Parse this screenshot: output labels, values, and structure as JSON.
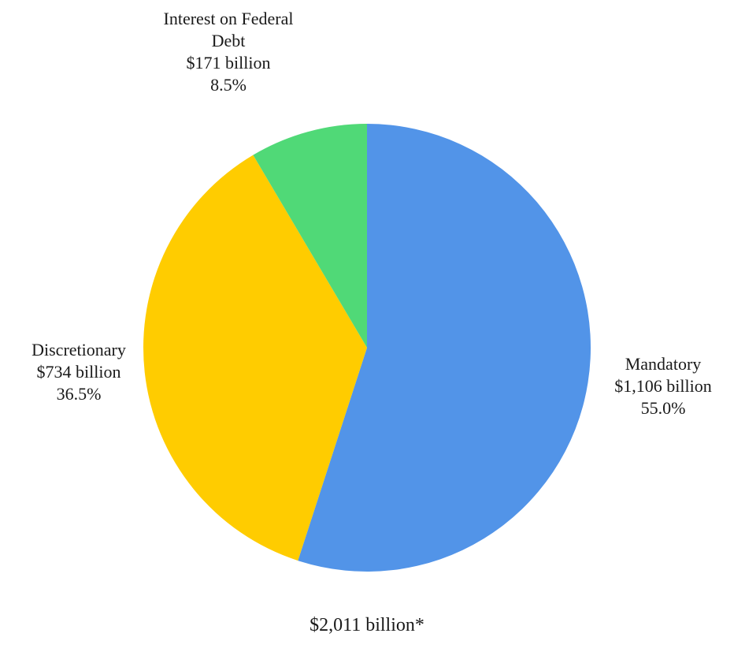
{
  "chart_data": {
    "type": "pie",
    "slices": [
      {
        "name": "Mandatory",
        "label_lines": [
          "Mandatory"
        ],
        "amount": "$1,106 billion",
        "percent_text": "55.0%",
        "value": 1106,
        "percent": 55.0,
        "color": "#5294e8"
      },
      {
        "name": "Discretionary",
        "label_lines": [
          "Discretionary"
        ],
        "amount": "$734 billion",
        "percent_text": "36.5%",
        "value": 734,
        "percent": 36.5,
        "color": "#ffcc00"
      },
      {
        "name": "Interest on Federal Debt",
        "label_lines": [
          "Interest on Federal",
          "Debt"
        ],
        "amount": "$171 billion",
        "percent_text": "8.5%",
        "value": 171,
        "percent": 8.5,
        "color": "#50d977"
      }
    ],
    "start_angle": "12 o'clock",
    "direction": "clockwise",
    "total_label": "$2,011 billion*"
  }
}
